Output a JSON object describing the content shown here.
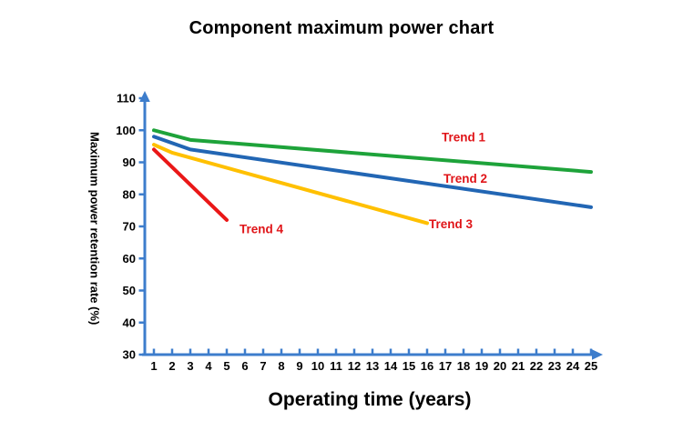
{
  "title": "Component maximum power chart",
  "chart_data": {
    "type": "line",
    "title": "Component maximum power chart",
    "xlabel": "Operating time (years)",
    "ylabel": "Maximum power retention rate (%)",
    "xlim": [
      1,
      25
    ],
    "ylim": [
      30,
      110
    ],
    "x_ticks": [
      1,
      2,
      3,
      4,
      5,
      6,
      7,
      8,
      9,
      10,
      11,
      12,
      13,
      14,
      15,
      16,
      17,
      18,
      19,
      20,
      21,
      22,
      23,
      24,
      25
    ],
    "y_ticks": [
      30,
      40,
      50,
      60,
      70,
      80,
      90,
      100,
      110
    ],
    "grid": false,
    "legend_position": "inline-labels",
    "axis_color": "#3d7dcc",
    "series_label_color": "#e01519",
    "series": [
      {
        "name": "Trend 1",
        "color": "#1ea33a",
        "points": [
          [
            1,
            100
          ],
          [
            3,
            97
          ],
          [
            25,
            87
          ]
        ],
        "label_at": [
          18.0,
          98.0
        ]
      },
      {
        "name": "Trend 2",
        "color": "#2266b4",
        "points": [
          [
            1,
            98
          ],
          [
            3,
            94
          ],
          [
            25,
            76
          ]
        ],
        "label_at": [
          18.1,
          85.0
        ]
      },
      {
        "name": "Trend 3",
        "color": "#ffc000",
        "points": [
          [
            1,
            95.5
          ],
          [
            2,
            93
          ],
          [
            16,
            71
          ]
        ],
        "label_at": [
          17.3,
          70.8
        ]
      },
      {
        "name": "Trend 4",
        "color": "#ea1717",
        "points": [
          [
            1,
            94
          ],
          [
            5,
            72
          ]
        ],
        "label_at": [
          6.9,
          69.3
        ]
      }
    ]
  }
}
